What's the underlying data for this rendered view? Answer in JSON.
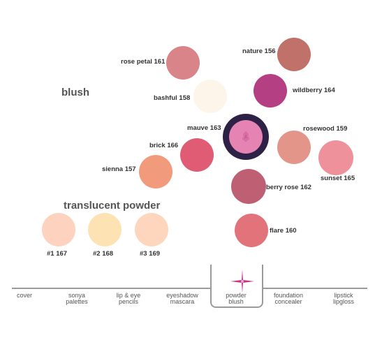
{
  "sections": {
    "blush_title": "blush",
    "translucent_title": "translucent powder"
  },
  "swatches": {
    "rose_petal": {
      "label": "rose petal 161",
      "color": "#d88489"
    },
    "bashful": {
      "label": "bashful 158",
      "color": "#fdf4ea"
    },
    "nature": {
      "label": "nature 156",
      "color": "#c0716a"
    },
    "wildberry": {
      "label": "wildberry 164",
      "color": "#b53f83"
    },
    "mauve": {
      "label": "mauve 163",
      "color": "#e583b2"
    },
    "rosewood": {
      "label": "rosewood 159",
      "color": "#e3958a"
    },
    "sunset": {
      "label": "sunset 165",
      "color": "#ef919b"
    },
    "brick": {
      "label": "brick 166",
      "color": "#df5c74"
    },
    "sienna": {
      "label": "sienna 157",
      "color": "#f19a7c"
    },
    "berry_rose": {
      "label": "berry rose 162",
      "color": "#bf5f73"
    },
    "flare": {
      "label": "flare 160",
      "color": "#e2737a"
    },
    "powder1": {
      "label": "#1 167",
      "color": "#fdd3bf"
    },
    "powder2": {
      "label": "#2 168",
      "color": "#fde2b4"
    },
    "powder3": {
      "label": "#3 169",
      "color": "#fed6bd"
    }
  },
  "selected_ring_color": "#2d2146",
  "nav": [
    {
      "line1": "cover",
      "line2": ""
    },
    {
      "line1": "sonya",
      "line2": "palettes"
    },
    {
      "line1": "lip & eye",
      "line2": "pencils"
    },
    {
      "line1": "eyeshadow",
      "line2": "mascara"
    },
    {
      "line1": "powder",
      "line2": "blush"
    },
    {
      "line1": "foundation",
      "line2": "concealer"
    },
    {
      "line1": "lipstick",
      "line2": "lipgloss"
    }
  ],
  "accent_color": "#c8348a"
}
